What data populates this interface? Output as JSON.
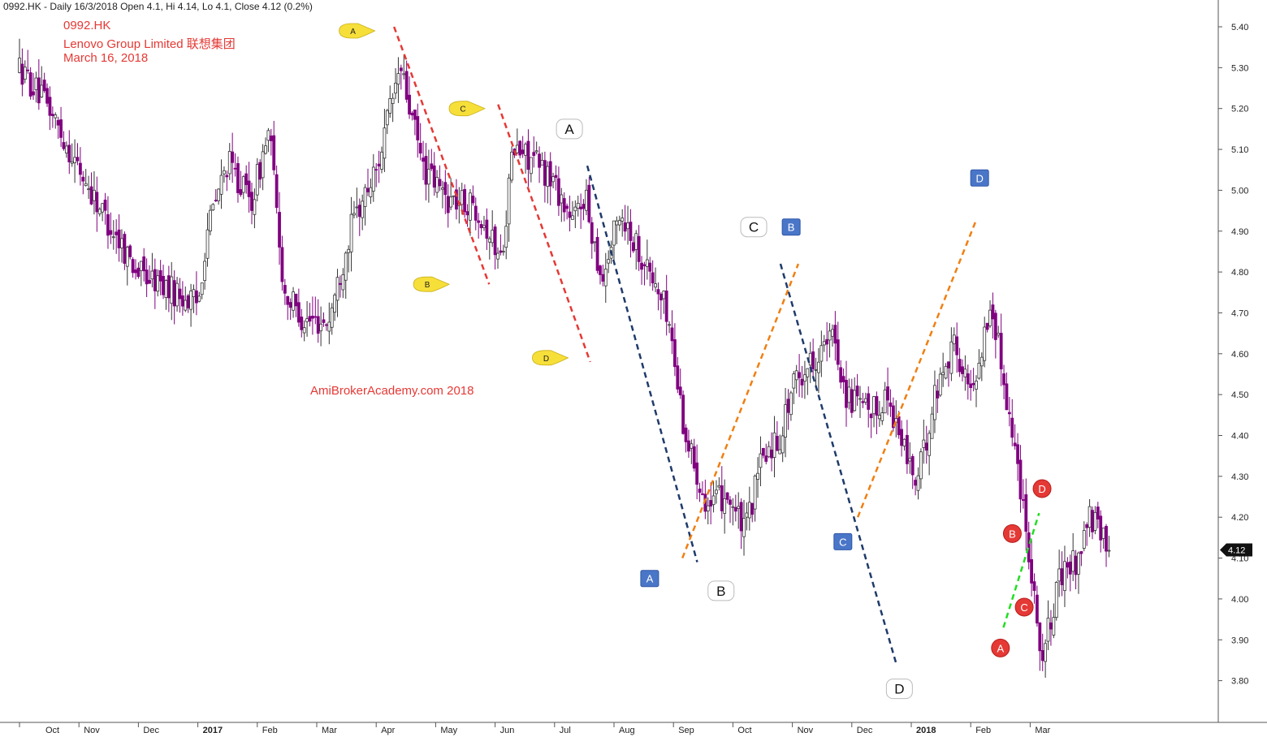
{
  "header": {
    "info": "0992.HK - Daily 16/3/2018 Open 4.1, Hi 4.14, Lo 4.1, Close 4.12 (0.2%)"
  },
  "titles": {
    "line1": "0992.HK",
    "line2": "Lenovo Group Limited 联想集团",
    "line3": "March 16, 2018"
  },
  "watermark": "AmiBrokerAcademy.com  2018",
  "last_price_tag": "4.12",
  "colors": {
    "candle": "#800080",
    "red_trend": "#e53935",
    "navy_trend": "#1f3a6b",
    "orange_trend": "#f07f12",
    "green_trend": "#22dd22",
    "yellow_marker": "#f7df3a",
    "blue_marker": "#4a76c8",
    "red_marker": "#e53935"
  },
  "chart_data": {
    "type": "candlestick",
    "symbol": "0992.HK",
    "ylim": [
      3.7,
      5.45
    ],
    "y_ticks": [
      "5.40",
      "5.30",
      "5.20",
      "5.10",
      "5.00",
      "4.90",
      "4.80",
      "4.70",
      "4.60",
      "4.50",
      "4.40",
      "4.30",
      "4.20",
      "4.10",
      "4.00",
      "3.90",
      "3.80"
    ],
    "x_labels": [
      "Oct",
      "Nov",
      "Dec",
      "2017",
      "Feb",
      "Mar",
      "Apr",
      "May",
      "Jun",
      "Jul",
      "Aug",
      "Sep",
      "Oct",
      "Nov",
      "Dec",
      "2018",
      "Feb",
      "Mar"
    ],
    "x_label_bold": [
      false,
      false,
      false,
      true,
      false,
      false,
      false,
      false,
      false,
      false,
      false,
      false,
      false,
      false,
      false,
      true,
      false,
      false
    ],
    "anchors": [
      {
        "m": 0,
        "p": 5.3
      },
      {
        "m": 0.5,
        "p": 5.2
      },
      {
        "m": 1.0,
        "p": 5.05
      },
      {
        "m": 1.5,
        "p": 4.92
      },
      {
        "m": 2.0,
        "p": 4.8
      },
      {
        "m": 2.5,
        "p": 4.76
      },
      {
        "m": 3.0,
        "p": 4.72
      },
      {
        "m": 3.15,
        "p": 4.9
      },
      {
        "m": 3.5,
        "p": 5.07
      },
      {
        "m": 3.9,
        "p": 4.97
      },
      {
        "m": 4.2,
        "p": 5.15
      },
      {
        "m": 4.45,
        "p": 4.75
      },
      {
        "m": 4.8,
        "p": 4.68
      },
      {
        "m": 5.2,
        "p": 4.68
      },
      {
        "m": 5.6,
        "p": 4.92
      },
      {
        "m": 6.0,
        "p": 5.05
      },
      {
        "m": 6.4,
        "p": 5.3
      },
      {
        "m": 6.8,
        "p": 5.05
      },
      {
        "m": 7.2,
        "p": 4.98
      },
      {
        "m": 7.7,
        "p": 4.96
      },
      {
        "m": 8.1,
        "p": 4.83
      },
      {
        "m": 8.3,
        "p": 5.1
      },
      {
        "m": 8.6,
        "p": 5.08
      },
      {
        "m": 9.0,
        "p": 5.02
      },
      {
        "m": 9.3,
        "p": 4.92
      },
      {
        "m": 9.5,
        "p": 4.99
      },
      {
        "m": 9.8,
        "p": 4.78
      },
      {
        "m": 10.1,
        "p": 4.95
      },
      {
        "m": 10.5,
        "p": 4.83
      },
      {
        "m": 10.9,
        "p": 4.7
      },
      {
        "m": 11.2,
        "p": 4.4
      },
      {
        "m": 11.6,
        "p": 4.22
      },
      {
        "m": 11.9,
        "p": 4.26
      },
      {
        "m": 12.2,
        "p": 4.16
      },
      {
        "m": 12.5,
        "p": 4.35
      },
      {
        "m": 12.8,
        "p": 4.4
      },
      {
        "m": 13.0,
        "p": 4.52
      },
      {
        "m": 13.3,
        "p": 4.58
      },
      {
        "m": 13.7,
        "p": 4.64
      },
      {
        "m": 13.9,
        "p": 4.5
      },
      {
        "m": 14.3,
        "p": 4.45
      },
      {
        "m": 14.6,
        "p": 4.5
      },
      {
        "m": 14.8,
        "p": 4.4
      },
      {
        "m": 15.1,
        "p": 4.28
      },
      {
        "m": 15.4,
        "p": 4.5
      },
      {
        "m": 15.7,
        "p": 4.63
      },
      {
        "m": 16.0,
        "p": 4.5
      },
      {
        "m": 16.35,
        "p": 4.72
      },
      {
        "m": 16.6,
        "p": 4.5
      },
      {
        "m": 16.9,
        "p": 4.22
      },
      {
        "m": 17.2,
        "p": 3.85
      },
      {
        "m": 17.5,
        "p": 4.05
      },
      {
        "m": 17.8,
        "p": 4.1
      },
      {
        "m": 18.0,
        "p": 4.2
      },
      {
        "m": 18.35,
        "p": 4.12
      }
    ],
    "trendlines": [
      {
        "color": "red",
        "from": {
          "m": 6.3,
          "p": 5.4
        },
        "to": {
          "m": 7.9,
          "p": 4.77
        }
      },
      {
        "color": "red",
        "from": {
          "m": 8.05,
          "p": 5.21
        },
        "to": {
          "m": 9.6,
          "p": 4.58
        }
      },
      {
        "color": "navy",
        "from": {
          "m": 9.55,
          "p": 5.06
        },
        "to": {
          "m": 11.4,
          "p": 4.09
        }
      },
      {
        "color": "orange",
        "from": {
          "m": 11.15,
          "p": 4.1
        },
        "to": {
          "m": 13.1,
          "p": 4.82
        }
      },
      {
        "color": "navy",
        "from": {
          "m": 12.8,
          "p": 4.82
        },
        "to": {
          "m": 14.75,
          "p": 3.84
        }
      },
      {
        "color": "orange",
        "from": {
          "m": 14.1,
          "p": 4.2
        },
        "to": {
          "m": 16.1,
          "p": 4.93
        }
      },
      {
        "color": "green",
        "from": {
          "m": 16.55,
          "p": 3.93
        },
        "to": {
          "m": 17.15,
          "p": 4.21
        }
      }
    ],
    "markers": [
      {
        "style": "yellow",
        "label": "A",
        "m": 5.65,
        "p": 5.39
      },
      {
        "style": "yellow",
        "label": "C",
        "m": 7.5,
        "p": 5.2
      },
      {
        "style": "yellow",
        "label": "B",
        "m": 6.9,
        "p": 4.77
      },
      {
        "style": "yellow",
        "label": "D",
        "m": 8.9,
        "p": 4.59
      },
      {
        "style": "white",
        "label": "A",
        "m": 9.25,
        "p": 5.15
      },
      {
        "style": "white",
        "label": "C",
        "m": 12.35,
        "p": 4.91
      },
      {
        "style": "white",
        "label": "B",
        "m": 11.8,
        "p": 4.02
      },
      {
        "style": "white",
        "label": "D",
        "m": 14.8,
        "p": 3.78
      },
      {
        "style": "blue",
        "label": "D",
        "m": 16.15,
        "p": 5.03
      },
      {
        "style": "blue",
        "label": "B",
        "m": 12.98,
        "p": 4.91
      },
      {
        "style": "blue",
        "label": "C",
        "m": 13.85,
        "p": 4.14
      },
      {
        "style": "blue",
        "label": "A",
        "m": 10.6,
        "p": 4.05
      },
      {
        "style": "red",
        "label": "D",
        "m": 17.2,
        "p": 4.27
      },
      {
        "style": "red",
        "label": "B",
        "m": 16.7,
        "p": 4.16
      },
      {
        "style": "red",
        "label": "C",
        "m": 16.9,
        "p": 3.98
      },
      {
        "style": "red",
        "label": "A",
        "m": 16.5,
        "p": 3.88
      }
    ]
  }
}
